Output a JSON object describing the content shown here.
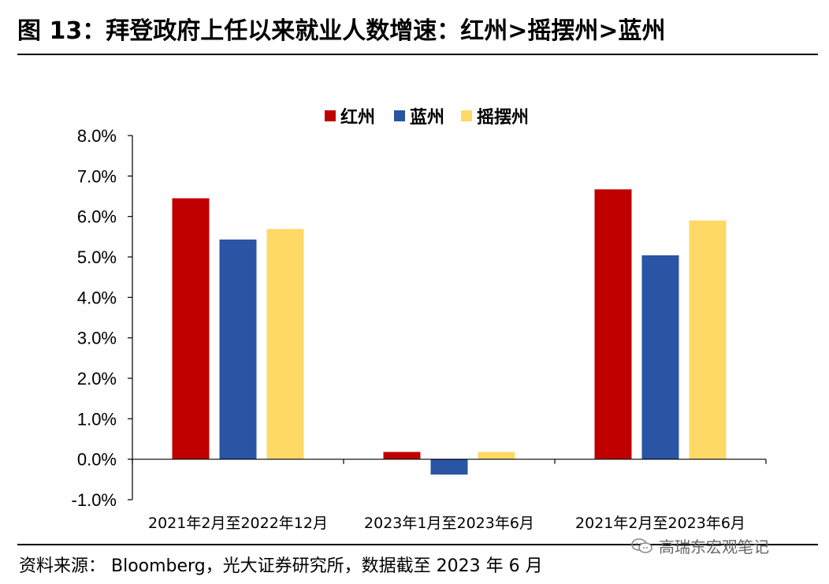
{
  "header": {
    "title": "图 13：拜登政府上任以来就业人数增速：红州>摇摆州>蓝州"
  },
  "footer": {
    "source": "资料来源：  Bloomberg，光大证券研究所，数据截至 2023 年 6 月",
    "watermark": "高瑞东宏观笔记"
  },
  "colors": {
    "red_state": "#C00000",
    "blue_state": "#2A54A4",
    "swing_state": "#FFD966"
  },
  "chart_data": {
    "type": "bar",
    "title": "",
    "xlabel": "",
    "ylabel": "",
    "categories": [
      "2021年2月至2022年12月",
      "2023年1月至2023年6月",
      "2021年2月至2023年6月"
    ],
    "series": [
      {
        "name": "红州",
        "color": "#C00000",
        "values": [
          6.45,
          0.18,
          6.67
        ]
      },
      {
        "name": "蓝州",
        "color": "#2A54A4",
        "values": [
          5.43,
          -0.38,
          5.04
        ]
      },
      {
        "name": "摇摆州",
        "color": "#FFD966",
        "values": [
          5.69,
          0.18,
          5.9
        ]
      }
    ],
    "ylim": [
      -1.0,
      8.0
    ],
    "yticks": [
      "-1.0%",
      "0.0%",
      "1.0%",
      "2.0%",
      "3.0%",
      "4.0%",
      "5.0%",
      "6.0%",
      "7.0%",
      "8.0%"
    ],
    "ytick_values": [
      -1,
      0,
      1,
      2,
      3,
      4,
      5,
      6,
      7,
      8
    ],
    "unit": "%",
    "grid": false,
    "legend": "top-center"
  }
}
